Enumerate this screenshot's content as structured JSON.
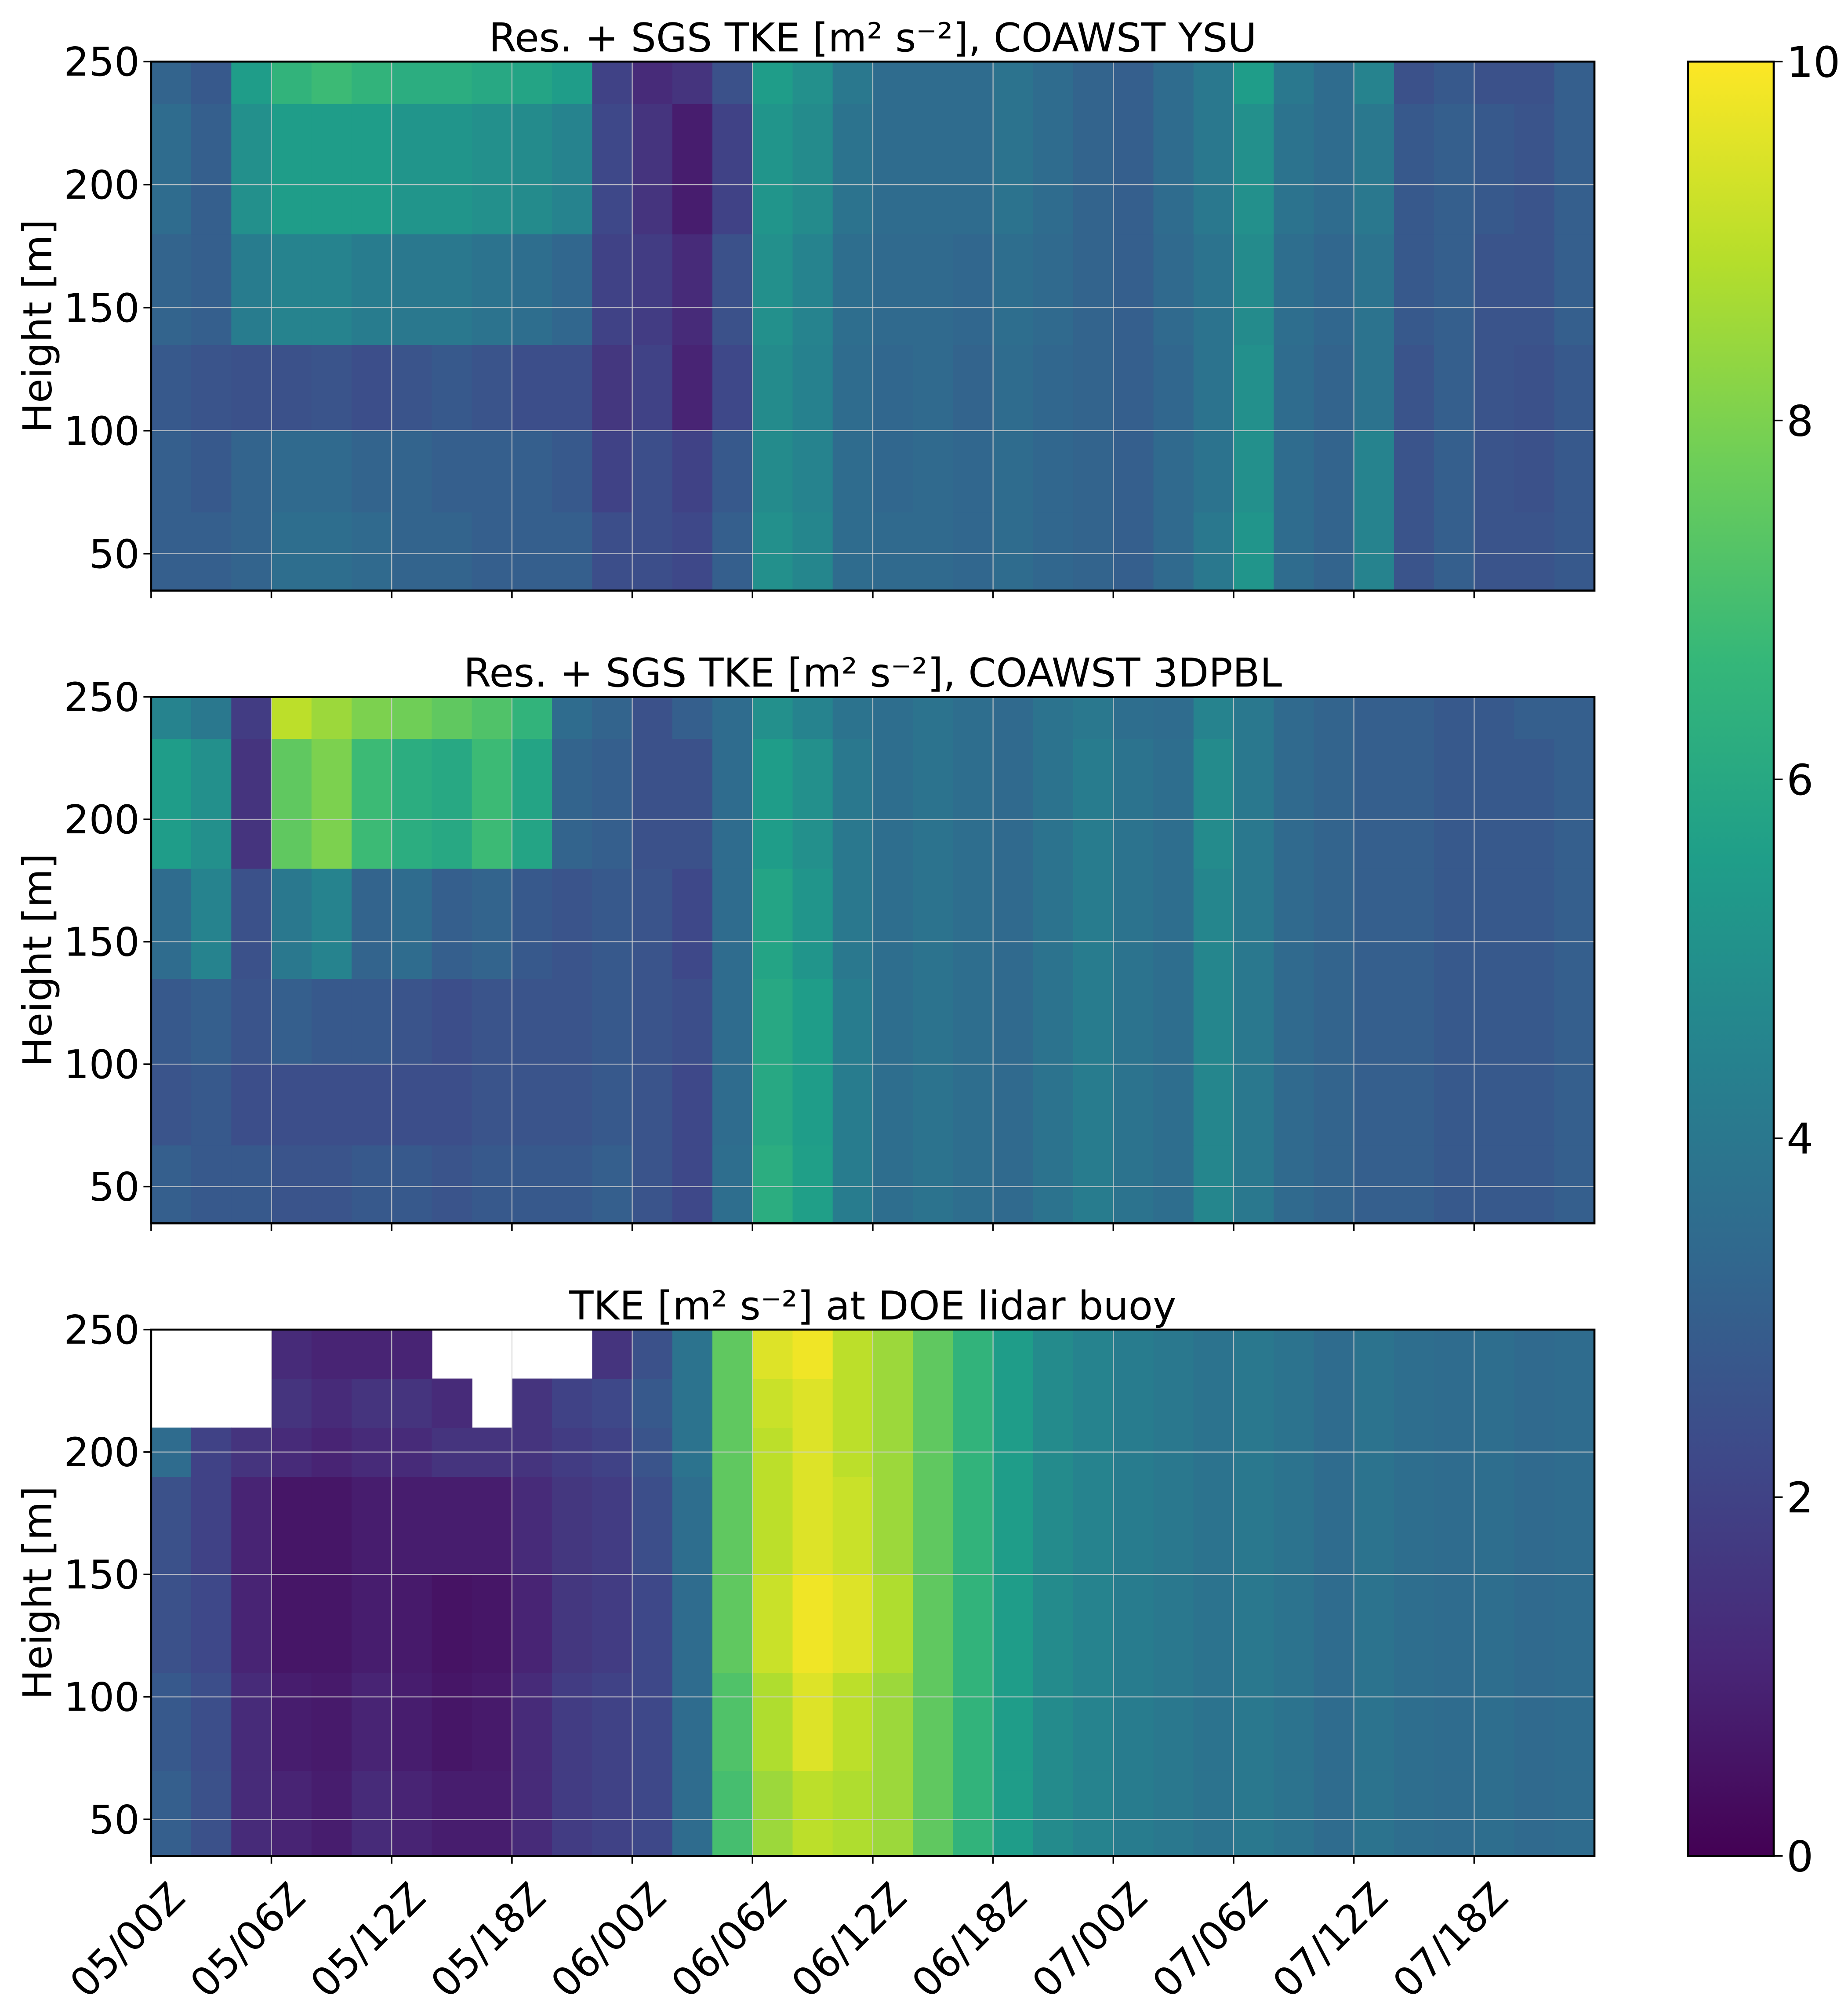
{
  "colorbar": {
    "lim": [
      0,
      10
    ],
    "ticks": [
      0,
      2,
      4,
      6,
      8,
      10
    ],
    "colormap": [
      "#440154",
      "#482878",
      "#3e4989",
      "#31688e",
      "#26828e",
      "#1f9e89",
      "#35b779",
      "#6ece58",
      "#b5de2b",
      "#fde725"
    ]
  },
  "chart_data": [
    {
      "type": "heatmap",
      "title": "Res. + SGS TKE [m² s⁻²], COAWST YSU",
      "y_label": "Height [m]",
      "grid": true,
      "xlim": [
        0,
        72
      ],
      "ylim": [
        35,
        250
      ],
      "yticks": [
        50,
        100,
        150,
        200,
        250
      ],
      "x": [
        0,
        2,
        4,
        6,
        8,
        10,
        12,
        14,
        16,
        18,
        20,
        22,
        24,
        26,
        28,
        30,
        32,
        34,
        36,
        38,
        40,
        42,
        44,
        46,
        48,
        50,
        52,
        54,
        56,
        58,
        60,
        62,
        64,
        66,
        68,
        70,
        72
      ],
      "y": [
        35,
        67,
        100,
        135,
        180,
        233,
        250
      ],
      "values": [
        [
          3.0,
          3.0,
          3.2,
          3.6,
          3.6,
          3.4,
          3.2,
          3.2,
          3.0,
          3.0,
          3.0,
          2.4,
          2.4,
          2.2,
          3.0,
          5.0,
          4.6,
          3.5,
          3.4,
          3.4,
          3.3,
          3.5,
          3.3,
          3.2,
          3.0,
          3.4,
          4.0,
          5.2,
          3.5,
          3.2,
          4.5,
          2.6,
          3.0,
          2.6,
          2.6,
          2.8
        ],
        [
          3.0,
          2.8,
          3.2,
          3.4,
          3.4,
          3.2,
          3.2,
          3.0,
          3.0,
          3.0,
          2.8,
          2.0,
          2.4,
          2.0,
          2.8,
          4.8,
          4.5,
          3.5,
          3.3,
          3.4,
          3.3,
          3.5,
          3.3,
          3.2,
          3.0,
          3.4,
          3.8,
          5.0,
          3.5,
          3.2,
          4.5,
          2.6,
          3.0,
          2.6,
          2.5,
          2.8
        ],
        [
          2.8,
          2.6,
          2.5,
          2.5,
          2.6,
          2.4,
          2.6,
          2.8,
          2.6,
          2.4,
          2.4,
          1.6,
          2.0,
          1.0,
          2.2,
          4.8,
          4.4,
          3.5,
          3.3,
          3.4,
          3.2,
          3.5,
          3.3,
          3.2,
          3.0,
          3.3,
          3.8,
          5.0,
          3.5,
          3.2,
          3.8,
          2.6,
          3.0,
          2.6,
          2.5,
          2.8
        ],
        [
          3.2,
          3.0,
          4.2,
          4.5,
          4.5,
          4.2,
          4.0,
          4.0,
          3.8,
          3.6,
          3.3,
          2.0,
          1.8,
          1.2,
          2.5,
          5.0,
          4.5,
          3.6,
          3.4,
          3.4,
          3.3,
          3.6,
          3.4,
          3.2,
          3.0,
          3.4,
          3.8,
          4.8,
          3.6,
          3.3,
          3.8,
          2.8,
          3.0,
          2.6,
          2.6,
          3.0
        ],
        [
          3.5,
          3.0,
          5.0,
          5.5,
          5.5,
          5.5,
          5.2,
          5.2,
          5.0,
          4.8,
          4.5,
          2.2,
          1.5,
          0.8,
          2.0,
          5.2,
          4.8,
          3.8,
          3.5,
          3.5,
          3.5,
          3.8,
          3.5,
          3.2,
          3.0,
          3.5,
          4.0,
          5.0,
          3.8,
          3.5,
          4.0,
          2.8,
          3.0,
          2.8,
          2.6,
          3.0
        ],
        [
          3.2,
          2.8,
          5.5,
          6.5,
          6.8,
          6.5,
          6.2,
          6.2,
          6.0,
          5.8,
          5.5,
          2.0,
          1.2,
          1.5,
          2.5,
          5.5,
          5.0,
          4.0,
          3.5,
          3.5,
          3.5,
          3.8,
          3.5,
          3.2,
          3.0,
          3.5,
          4.0,
          5.5,
          4.0,
          3.5,
          4.5,
          2.5,
          2.8,
          2.5,
          2.5,
          3.0
        ]
      ]
    },
    {
      "type": "heatmap",
      "title": "Res. + SGS TKE [m² s⁻²], COAWST 3DPBL",
      "y_label": "Height [m]",
      "grid": true,
      "xlim": [
        0,
        72
      ],
      "ylim": [
        35,
        250
      ],
      "yticks": [
        50,
        100,
        150,
        200,
        250
      ],
      "x": [
        0,
        2,
        4,
        6,
        8,
        10,
        12,
        14,
        16,
        18,
        20,
        22,
        24,
        26,
        28,
        30,
        32,
        34,
        36,
        38,
        40,
        42,
        44,
        46,
        48,
        50,
        52,
        54,
        56,
        58,
        60,
        62,
        64,
        66,
        68,
        70,
        72
      ],
      "y": [
        35,
        67,
        100,
        135,
        180,
        233,
        250
      ],
      "values": [
        [
          3.0,
          2.8,
          2.8,
          2.6,
          2.6,
          2.8,
          2.8,
          2.6,
          2.8,
          2.8,
          2.8,
          3.0,
          2.6,
          2.2,
          3.6,
          6.2,
          5.6,
          4.2,
          3.6,
          3.8,
          3.6,
          3.4,
          3.8,
          4.2,
          3.8,
          3.6,
          4.6,
          4.0,
          3.4,
          3.2,
          3.0,
          3.0,
          2.8,
          2.8,
          2.8,
          3.0
        ],
        [
          2.6,
          2.8,
          2.4,
          2.4,
          2.4,
          2.4,
          2.4,
          2.4,
          2.6,
          2.6,
          2.6,
          2.8,
          2.6,
          2.2,
          3.5,
          6.0,
          5.5,
          4.2,
          3.6,
          3.8,
          3.6,
          3.4,
          3.8,
          4.2,
          3.8,
          3.6,
          4.6,
          4.0,
          3.4,
          3.2,
          3.0,
          3.0,
          2.8,
          2.8,
          2.8,
          3.0
        ],
        [
          2.8,
          3.0,
          2.6,
          3.0,
          2.8,
          2.8,
          2.6,
          2.4,
          2.6,
          2.6,
          2.6,
          2.8,
          2.6,
          2.4,
          3.5,
          6.0,
          5.5,
          4.2,
          3.6,
          3.8,
          3.6,
          3.4,
          3.8,
          4.2,
          3.8,
          3.6,
          4.6,
          4.0,
          3.4,
          3.2,
          3.0,
          3.0,
          2.8,
          2.8,
          2.8,
          3.0
        ],
        [
          3.5,
          4.5,
          2.5,
          4.0,
          4.5,
          3.2,
          3.5,
          3.0,
          3.2,
          2.8,
          2.6,
          2.8,
          2.6,
          2.2,
          3.5,
          5.8,
          5.2,
          4.0,
          3.6,
          3.8,
          3.6,
          3.4,
          3.8,
          4.2,
          3.8,
          3.6,
          4.6,
          4.0,
          3.4,
          3.2,
          3.0,
          3.0,
          2.8,
          2.8,
          2.8,
          3.0
        ],
        [
          5.5,
          5.0,
          1.5,
          7.5,
          8.0,
          6.8,
          6.2,
          6.0,
          6.8,
          5.8,
          3.2,
          3.0,
          2.5,
          2.5,
          3.5,
          5.5,
          5.0,
          4.0,
          3.6,
          3.8,
          3.6,
          3.4,
          3.8,
          4.2,
          3.8,
          3.6,
          4.8,
          4.0,
          3.4,
          3.2,
          3.0,
          3.0,
          2.8,
          2.8,
          2.8,
          3.0
        ],
        [
          4.5,
          4.0,
          1.8,
          9.0,
          8.5,
          8.0,
          7.8,
          7.5,
          7.2,
          6.5,
          3.5,
          3.2,
          2.5,
          3.0,
          3.5,
          5.0,
          4.5,
          3.8,
          3.6,
          3.8,
          3.6,
          3.4,
          3.8,
          4.0,
          3.6,
          3.5,
          4.5,
          4.0,
          3.4,
          3.2,
          3.0,
          3.0,
          2.8,
          2.8,
          3.0,
          3.0
        ]
      ]
    },
    {
      "type": "heatmap",
      "title": "TKE [m² s⁻²] at DOE lidar buoy",
      "y_label": "Height [m]",
      "grid": true,
      "xlim": [
        0,
        72
      ],
      "ylim": [
        35,
        250
      ],
      "yticks": [
        50,
        100,
        150,
        200,
        250
      ],
      "xticks": [
        {
          "value": 0,
          "label": "05/00Z"
        },
        {
          "value": 6,
          "label": "05/06Z"
        },
        {
          "value": 12,
          "label": "05/12Z"
        },
        {
          "value": 18,
          "label": "05/18Z"
        },
        {
          "value": 24,
          "label": "06/00Z"
        },
        {
          "value": 30,
          "label": "06/06Z"
        },
        {
          "value": 36,
          "label": "06/12Z"
        },
        {
          "value": 42,
          "label": "06/18Z"
        },
        {
          "value": 48,
          "label": "07/00Z"
        },
        {
          "value": 54,
          "label": "07/06Z"
        },
        {
          "value": 60,
          "label": "07/12Z"
        },
        {
          "value": 66,
          "label": "07/18Z"
        }
      ],
      "x": [
        0,
        2,
        4,
        6,
        8,
        10,
        12,
        14,
        16,
        18,
        20,
        22,
        24,
        26,
        28,
        30,
        32,
        34,
        36,
        38,
        40,
        42,
        44,
        46,
        48,
        50,
        52,
        54,
        56,
        58,
        60,
        62,
        64,
        66,
        68,
        70,
        72
      ],
      "y": [
        35,
        70,
        110,
        150,
        190,
        210,
        230,
        250
      ],
      "values": [
        [
          3.0,
          2.5,
          1.2,
          1.0,
          0.8,
          1.2,
          1.0,
          0.8,
          0.8,
          1.2,
          1.8,
          2.0,
          2.2,
          3.5,
          7.0,
          8.5,
          9.0,
          8.8,
          8.5,
          7.5,
          6.5,
          5.5,
          4.8,
          4.5,
          4.2,
          4.0,
          3.8,
          4.0,
          3.8,
          3.5,
          3.8,
          3.6,
          3.5,
          3.6,
          3.4,
          3.5
        ],
        [
          2.8,
          2.4,
          1.2,
          0.8,
          0.7,
          1.0,
          0.8,
          0.6,
          0.7,
          1.2,
          1.8,
          2.0,
          2.2,
          3.5,
          7.2,
          8.8,
          9.5,
          9.0,
          8.5,
          7.5,
          6.5,
          5.5,
          4.8,
          4.5,
          4.2,
          4.0,
          3.8,
          4.0,
          3.8,
          3.5,
          3.8,
          3.6,
          3.5,
          3.6,
          3.4,
          3.5
        ],
        [
          2.5,
          2.2,
          1.0,
          0.6,
          0.6,
          0.8,
          0.7,
          0.5,
          0.6,
          1.0,
          1.6,
          1.8,
          2.2,
          3.5,
          7.5,
          9.2,
          9.8,
          9.5,
          8.8,
          7.5,
          6.5,
          5.5,
          4.8,
          4.5,
          4.2,
          4.0,
          3.8,
          4.0,
          3.8,
          3.5,
          3.8,
          3.6,
          3.5,
          3.6,
          3.4,
          3.5
        ],
        [
          2.5,
          2.0,
          1.0,
          0.6,
          0.6,
          0.8,
          0.8,
          0.8,
          0.8,
          1.2,
          1.6,
          1.8,
          2.4,
          3.6,
          7.5,
          9.0,
          9.5,
          9.2,
          8.5,
          7.5,
          6.5,
          5.5,
          4.8,
          4.5,
          4.2,
          4.0,
          3.8,
          4.0,
          3.8,
          3.5,
          3.8,
          3.6,
          3.5,
          3.6,
          3.4,
          3.5
        ],
        [
          3.5,
          2.0,
          1.5,
          1.2,
          1.0,
          1.2,
          1.2,
          1.5,
          1.5,
          1.5,
          1.8,
          2.0,
          2.6,
          3.8,
          7.5,
          9.0,
          9.5,
          9.0,
          8.5,
          7.5,
          6.5,
          5.5,
          4.8,
          4.5,
          4.2,
          4.0,
          3.8,
          4.0,
          3.8,
          3.5,
          3.8,
          3.6,
          3.5,
          3.6,
          3.4,
          3.5
        ],
        [
          null,
          null,
          null,
          1.5,
          1.2,
          1.5,
          1.5,
          1.2,
          null,
          1.5,
          2.0,
          2.2,
          2.8,
          3.8,
          7.5,
          9.2,
          9.5,
          9.0,
          8.5,
          7.5,
          6.5,
          5.5,
          4.8,
          4.5,
          4.2,
          4.0,
          3.8,
          4.0,
          3.8,
          3.5,
          3.8,
          3.6,
          3.5,
          3.6,
          3.4,
          3.5
        ],
        [
          null,
          null,
          null,
          1.2,
          1.0,
          1.0,
          1.0,
          null,
          null,
          null,
          null,
          1.5,
          2.5,
          3.8,
          7.5,
          9.5,
          9.8,
          9.0,
          8.5,
          7.5,
          6.5,
          5.5,
          4.8,
          4.5,
          4.2,
          4.0,
          3.8,
          4.0,
          3.8,
          3.5,
          3.8,
          3.6,
          3.5,
          3.6,
          3.4,
          3.5
        ]
      ]
    }
  ]
}
